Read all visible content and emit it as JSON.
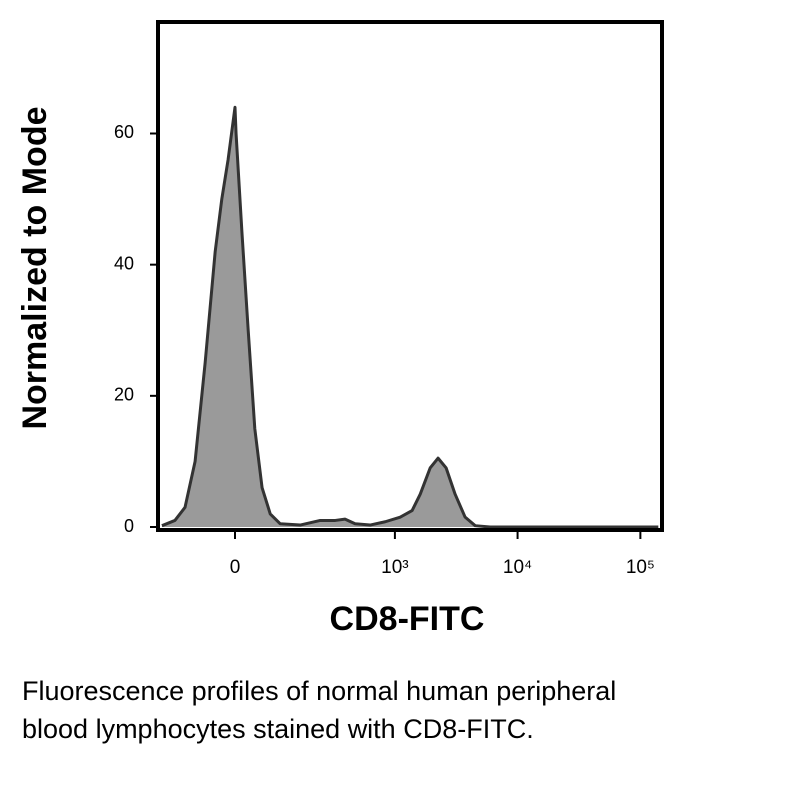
{
  "chart_data": {
    "type": "area",
    "x_label": "CD8-FITC",
    "y_label": "Normalized to Mode",
    "xscale": "biexponential",
    "x": [
      -184,
      -138,
      -108,
      -82,
      -59,
      -38,
      -25,
      -13,
      0,
      2,
      13,
      25,
      38,
      53,
      71,
      95,
      155,
      237,
      320,
      387,
      470,
      626,
      833,
      1104,
      1382,
      1610,
      1940,
      2250,
      2620,
      3100,
      3740,
      4520,
      5980,
      140000
    ],
    "y": [
      0.2,
      1,
      3,
      10,
      25,
      42,
      50,
      56,
      64,
      60,
      45,
      30,
      15,
      6,
      2,
      0.5,
      0.3,
      1,
      1,
      1.2,
      0.5,
      0.3,
      0.8,
      1.5,
      2.5,
      5,
      9,
      10.5,
      9,
      5,
      1.5,
      0.2,
      0,
      0
    ],
    "color": "#9a9a9a",
    "line_color": "#333333",
    "xlim": [
      -200,
      150000
    ],
    "xticks": [
      0,
      {
        "value": 1000,
        "label": "10³"
      },
      {
        "value": 10000,
        "label": "10⁴"
      },
      {
        "value": 100000,
        "label": "10⁵"
      }
    ],
    "ylim": [
      0,
      77
    ],
    "yticks": [
      0,
      20,
      40,
      60
    ],
    "caption": [
      "Fluorescence profiles of normal human peripheral",
      "blood lymphocytes stained with CD8-FITC."
    ]
  }
}
